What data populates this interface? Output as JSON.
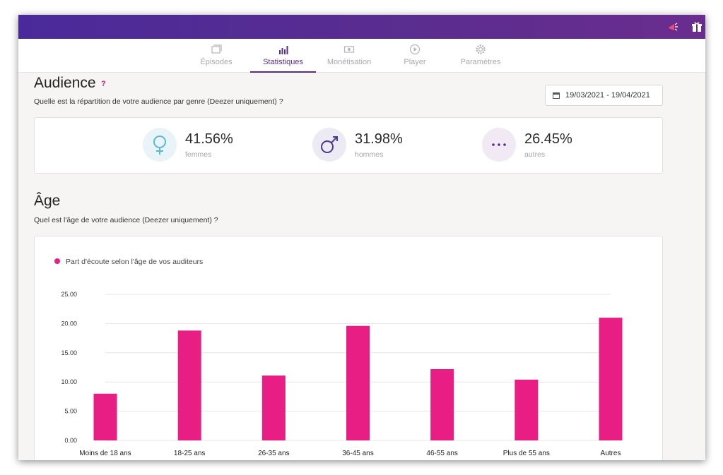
{
  "topbar": {
    "icons": [
      "megaphone-icon",
      "gift-icon"
    ]
  },
  "nav": {
    "tabs": [
      {
        "label": "Épisodes",
        "icon": "episodes-icon",
        "active": false
      },
      {
        "label": "Statistiques",
        "icon": "bar-chart-icon",
        "active": true
      },
      {
        "label": "Monétisation",
        "icon": "money-icon",
        "active": false
      },
      {
        "label": "Player",
        "icon": "play-icon",
        "active": false
      },
      {
        "label": "Paramètres",
        "icon": "gear-icon",
        "active": false
      }
    ]
  },
  "audience": {
    "title": "Audience",
    "help": "?",
    "question": "Quelle est la répartition de votre audience par genre (Deezer uniquement) ?",
    "date_range": "19/03/2021 - 19/04/2021",
    "stats": [
      {
        "value": "41.56%",
        "label": "femmes",
        "icon": "female-icon"
      },
      {
        "value": "31.98%",
        "label": "hommes",
        "icon": "male-icon"
      },
      {
        "value": "26.45%",
        "label": "autres",
        "icon": "more-icon"
      }
    ]
  },
  "age": {
    "title": "Âge",
    "question": "Quel est l'âge de votre audience (Deezer uniquement) ?"
  },
  "colors": {
    "brand": "#5c2b8f",
    "bar": "#e91e84",
    "female": "#5bb8d6",
    "male": "#4c3a8f"
  },
  "chart_data": {
    "type": "bar",
    "categories": [
      "Moins de 18 ans",
      "18-25 ans",
      "26-35 ans",
      "36-45 ans",
      "46-55 ans",
      "Plus de 55 ans",
      "Autres"
    ],
    "series": [
      {
        "name": "Part d'écoute selon l'âge de vos auditeurs",
        "values": [
          8.0,
          18.8,
          11.1,
          19.6,
          12.2,
          10.4,
          21.0
        ]
      }
    ],
    "ytick_labels": [
      "0.00",
      "5.00",
      "10.00",
      "15.00",
      "20.00",
      "25.00"
    ],
    "ylim": [
      0,
      25
    ],
    "grid": true,
    "legend": "top-left"
  }
}
